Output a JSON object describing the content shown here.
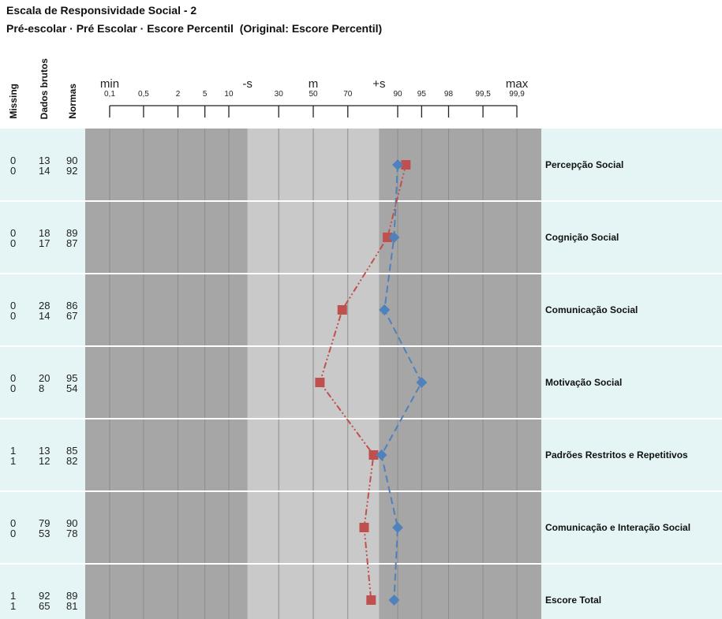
{
  "header": {
    "title": "Escala de Responsividade Social - 2",
    "subtitle": "Pré-escolar · Pré Escolar · Escore Percentil  (Original: Escore Percentil)"
  },
  "table": {
    "columns": [
      "Missing",
      "Dados brutos",
      "Normas"
    ],
    "rows": [
      {
        "missing": [
          "0",
          "0"
        ],
        "raw": [
          "13",
          "14"
        ],
        "norms": [
          "90",
          "92"
        ]
      },
      {
        "missing": [
          "0",
          "0"
        ],
        "raw": [
          "18",
          "17"
        ],
        "norms": [
          "89",
          "87"
        ]
      },
      {
        "missing": [
          "0",
          "0"
        ],
        "raw": [
          "28",
          "14"
        ],
        "norms": [
          "86",
          "67"
        ]
      },
      {
        "missing": [
          "0",
          "0"
        ],
        "raw": [
          "20",
          "8"
        ],
        "norms": [
          "95",
          "54"
        ]
      },
      {
        "missing": [
          "1",
          "1"
        ],
        "raw": [
          "13",
          "12"
        ],
        "norms": [
          "85",
          "82"
        ]
      },
      {
        "missing": [
          "0",
          "0"
        ],
        "raw": [
          "79",
          "53"
        ],
        "norms": [
          "90",
          "78"
        ]
      },
      {
        "missing": [
          "1",
          "1"
        ],
        "raw": [
          "92",
          "65"
        ],
        "norms": [
          "89",
          "81"
        ]
      }
    ]
  },
  "chart_data": {
    "type": "line",
    "orientation": "horizontal",
    "x_axis": {
      "scale": "normal-probability",
      "range": [
        0.1,
        99.9
      ],
      "ticks": [
        {
          "label": "0,1",
          "value": 0.1
        },
        {
          "label": "0,5",
          "value": 0.5
        },
        {
          "label": "2",
          "value": 2
        },
        {
          "label": "5",
          "value": 5
        },
        {
          "label": "10",
          "value": 10
        },
        {
          "label": "30",
          "value": 30
        },
        {
          "label": "50",
          "value": 50
        },
        {
          "label": "70",
          "value": 70
        },
        {
          "label": "90",
          "value": 90
        },
        {
          "label": "95",
          "value": 95
        },
        {
          "label": "98",
          "value": 98
        },
        {
          "label": "99,5",
          "value": 99.5
        },
        {
          "label": "99,9",
          "value": 99.9
        }
      ],
      "scale_markers": [
        {
          "label": "min",
          "value": 0.1
        },
        {
          "label": "-s",
          "value": 15.9
        },
        {
          "label": "m",
          "value": 50
        },
        {
          "label": "+s",
          "value": 84.1
        },
        {
          "label": "max",
          "value": 99.9
        }
      ],
      "shaded_band": [
        15.9,
        84.1
      ]
    },
    "grid": {
      "vertical": true,
      "horizontal": true
    },
    "legend": false,
    "categories": [
      "Percepção Social",
      "Cognição Social",
      "Comunicação Social",
      "Motivação Social",
      "Padrões Restritos e Repetitivos",
      "Comunicação e Interação Social",
      "Escore Total"
    ],
    "series": [
      {
        "values": [
          90,
          89,
          86,
          95,
          85,
          90,
          89
        ],
        "color": "#4f81bd",
        "marker": "diamond",
        "line_style": "dashed"
      },
      {
        "values": [
          92,
          87,
          67,
          54,
          82,
          78,
          81
        ],
        "color": "#c0504d",
        "marker": "square",
        "line_style": "dash-dot-dot"
      }
    ]
  },
  "colors": {
    "panel_background": "#e5f5f5",
    "plot_background": "#a6a6a6",
    "band_background": "#c9c9c9",
    "gridline": "#8c8c8c",
    "row_separator": "#ffffff",
    "axis": "#222222"
  }
}
